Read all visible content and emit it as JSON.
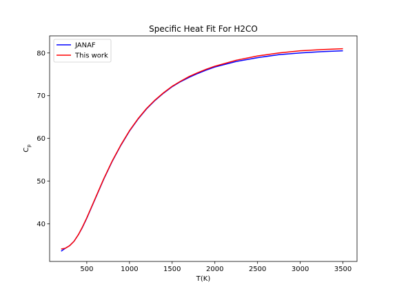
{
  "chart_data": {
    "type": "line",
    "title": "Specific Heat Fit For H2CO",
    "xlabel": "T(K)",
    "ylabel": "C",
    "ylabel_subscript": "p",
    "xlim": [
      65,
      3665
    ],
    "ylim": [
      31.2,
      84.0
    ],
    "xticks": [
      500,
      1000,
      1500,
      2000,
      2500,
      3000,
      3500
    ],
    "yticks": [
      40,
      50,
      60,
      70,
      80
    ],
    "grid": false,
    "legend_position": "upper-left",
    "series": [
      {
        "name": "JANAF",
        "color": "#0000ff",
        "x": [
          200,
          250,
          300,
          350,
          400,
          450,
          500,
          600,
          700,
          800,
          900,
          1000,
          1100,
          1200,
          1300,
          1400,
          1500,
          1600,
          1700,
          1800,
          1900,
          2000,
          2250,
          2500,
          2750,
          3000,
          3250,
          3500
        ],
        "y": [
          33.6,
          34.3,
          34.9,
          35.9,
          37.4,
          39.2,
          41.3,
          45.9,
          50.5,
          54.7,
          58.4,
          61.7,
          64.5,
          66.9,
          68.9,
          70.6,
          72.1,
          73.3,
          74.3,
          75.2,
          76.0,
          76.7,
          78.0,
          78.9,
          79.6,
          80.0,
          80.3,
          80.5
        ]
      },
      {
        "name": "This work",
        "color": "#ff0000",
        "x": [
          200,
          250,
          300,
          350,
          400,
          450,
          500,
          600,
          700,
          800,
          900,
          1000,
          1100,
          1200,
          1300,
          1400,
          1500,
          1600,
          1700,
          1800,
          1900,
          2000,
          2250,
          2500,
          2750,
          3000,
          3250,
          3500
        ],
        "y": [
          34.1,
          34.3,
          34.9,
          35.9,
          37.4,
          39.3,
          41.4,
          46.0,
          50.6,
          54.8,
          58.5,
          61.8,
          64.6,
          67.0,
          69.0,
          70.7,
          72.2,
          73.4,
          74.5,
          75.4,
          76.2,
          76.9,
          78.3,
          79.3,
          80.0,
          80.5,
          80.8,
          81.0
        ]
      }
    ]
  }
}
